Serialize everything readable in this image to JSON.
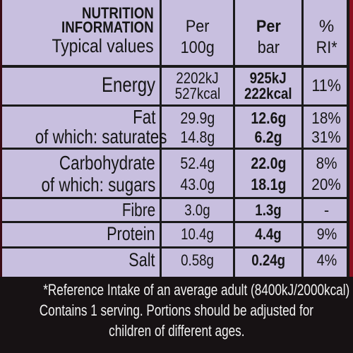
{
  "header": {
    "col1_line1": "NUTRITION",
    "col1_line2": "INFORMATION",
    "col1_line3": "Typical values",
    "col2_line1": "Per",
    "col2_line2": "100g",
    "col3_line1": "Per",
    "col3_line2": "bar",
    "col4_line1": "%",
    "col4_line2": "RI*"
  },
  "rows": {
    "energy": {
      "label": "Energy",
      "per100_kj": "2202kJ",
      "per100_kcal": "527kcal",
      "perbar_kj": "925kJ",
      "perbar_kcal": "222kcal",
      "ri": "11%"
    },
    "fat": {
      "label": "Fat",
      "per100": "29.9g",
      "perbar": "12.6g",
      "ri": "18%"
    },
    "saturates": {
      "label": "of which: saturates",
      "per100": "14.8g",
      "perbar": "6.2g",
      "ri": "31%"
    },
    "carbohydrate": {
      "label": "Carbohydrate",
      "per100": "52.4g",
      "perbar": "22.0g",
      "ri": "8%"
    },
    "sugars": {
      "label": "of which: sugars",
      "per100": "43.0g",
      "perbar": "18.1g",
      "ri": "20%"
    },
    "fibre": {
      "label": "Fibre",
      "per100": "3.0g",
      "perbar": "1.3g",
      "ri": "-"
    },
    "protein": {
      "label": "Protein",
      "per100": "10.4g",
      "perbar": "4.4g",
      "ri": "9%"
    },
    "salt": {
      "label": "Salt",
      "per100": "0.58g",
      "perbar": "0.24g",
      "ri": "4%"
    }
  },
  "footer": {
    "line1": "*Reference Intake of an average adult (8400kJ/2000kcal)",
    "line2": "Contains 1 serving. Portions should be adjusted for",
    "line3": "children of different ages."
  },
  "colors": {
    "panel_background": "#c8bfdf",
    "rule_lines": "#1a1a1a",
    "footer_background": "#171214",
    "footer_text": "#f2f2f2",
    "packaging_red": "#8a1020"
  }
}
